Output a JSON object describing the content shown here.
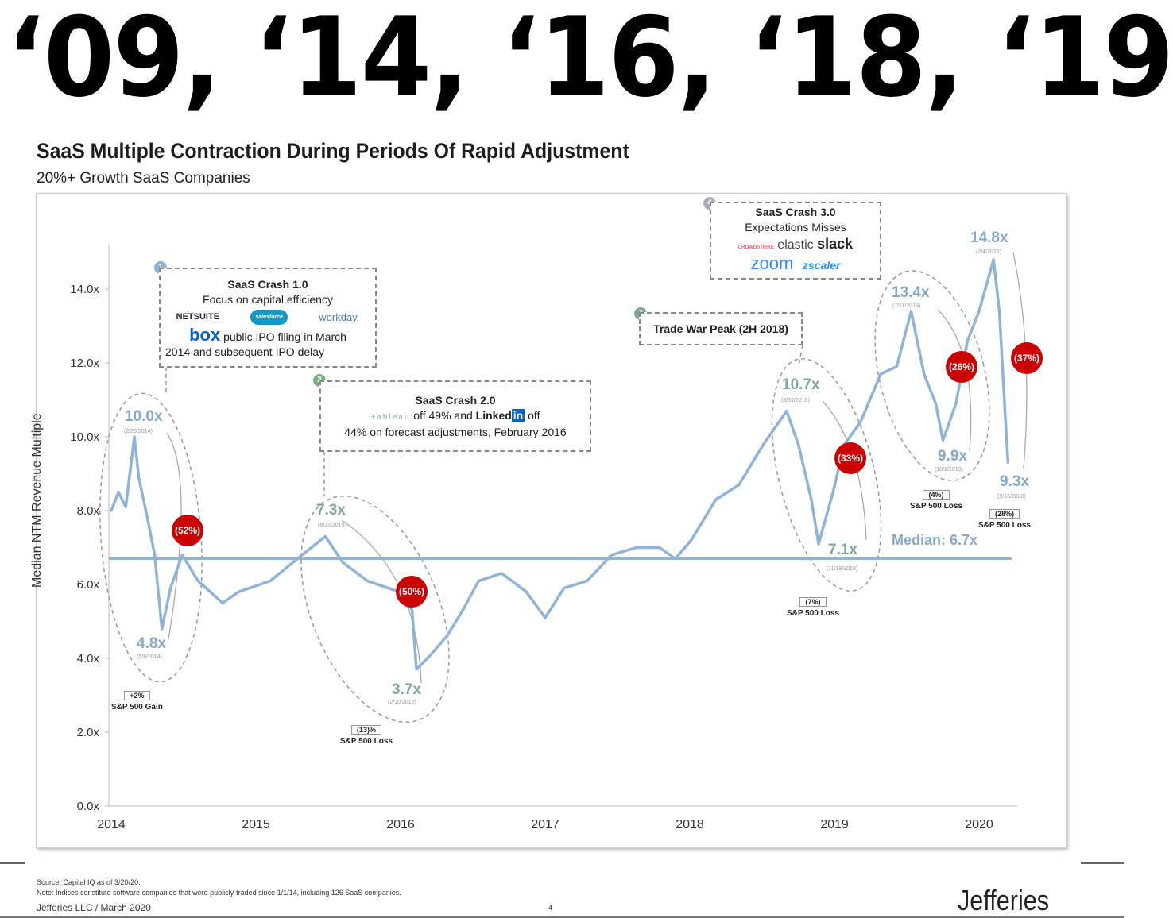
{
  "headline": "‘09, ‘14, ‘16, ‘18, ‘19",
  "chart_data": {
    "type": "line",
    "title": "SaaS Multiple Contraction During Periods Of Rapid Adjustment",
    "subtitle": "20%+ Growth SaaS Companies",
    "ylabel": "Median NTM Revenue Multiple",
    "xlabel": "",
    "ylim": [
      0,
      15
    ],
    "xlim": [
      2014,
      2020.3
    ],
    "yticks": [
      "0.0x",
      "2.0x",
      "4.0x",
      "6.0x",
      "8.0x",
      "10.0x",
      "12.0x",
      "14.0x"
    ],
    "ytick_values": [
      0,
      2,
      4,
      6,
      8,
      10,
      12,
      14
    ],
    "xticks": [
      "2014",
      "2015",
      "2016",
      "2017",
      "2018",
      "2019",
      "2020"
    ],
    "xtick_values": [
      2014,
      2015,
      2016,
      2017,
      2018,
      2019,
      2020
    ],
    "grid": false,
    "series": [
      {
        "name": "Median NTM Revenue Multiple",
        "color": "#8fb4d8",
        "x": [
          2014.0,
          2014.05,
          2014.1,
          2014.16,
          2014.19,
          2014.25,
          2014.3,
          2014.35,
          2014.41,
          2014.49,
          2014.6,
          2014.77,
          2014.88,
          2015.1,
          2015.32,
          2015.48,
          2015.6,
          2015.77,
          2015.99,
          2016.08,
          2016.11,
          2016.21,
          2016.32,
          2016.43,
          2016.54,
          2016.7,
          2016.87,
          2017.0,
          2017.13,
          2017.29,
          2017.46,
          2017.63,
          2017.79,
          2017.9,
          2018.01,
          2018.18,
          2018.34,
          2018.51,
          2018.67,
          2018.75,
          2018.84,
          2018.89,
          2018.99,
          2019.07,
          2019.18,
          2019.32,
          2019.43,
          2019.53,
          2019.62,
          2019.7,
          2019.75,
          2019.84,
          2019.92,
          2020.0,
          2020.1,
          2020.14,
          2020.18,
          2020.2
        ],
        "y": [
          8.0,
          8.5,
          8.1,
          10.0,
          8.9,
          7.8,
          6.8,
          4.8,
          5.9,
          6.8,
          6.1,
          5.5,
          5.8,
          6.1,
          6.8,
          7.3,
          6.6,
          6.1,
          5.8,
          5.3,
          3.7,
          4.1,
          4.6,
          5.3,
          6.1,
          6.3,
          5.8,
          5.1,
          5.9,
          6.1,
          6.8,
          7.0,
          7.0,
          6.7,
          7.2,
          8.3,
          8.7,
          9.8,
          10.7,
          9.8,
          8.3,
          7.1,
          8.5,
          9.8,
          10.4,
          11.7,
          11.9,
          13.4,
          11.7,
          10.9,
          9.9,
          10.9,
          12.6,
          13.4,
          14.8,
          13.4,
          10.6,
          9.3
        ]
      }
    ],
    "reference_line": {
      "label": "Median: 6.7x",
      "value": 6.7,
      "color": "#8fb4d8"
    },
    "annotations": {
      "p1": {
        "value": "10.0x",
        "date": "(2/26/2014)"
      },
      "t1": {
        "value": "4.8x",
        "date": "(5/8/2014)"
      },
      "d1": "(52%)",
      "sp1": {
        "change": "+2%",
        "label": "S&P 500 Gain"
      },
      "p2": {
        "value": "7.3x",
        "date": "(6/23/2015)"
      },
      "t2": {
        "value": "3.7x",
        "date": "(2/10/2016)"
      },
      "d2": "(50%)",
      "sp2": {
        "change": "(13)%",
        "label": "S&P 500 Loss"
      },
      "p3": {
        "value": "10.7x",
        "date": "(8/31/2018)"
      },
      "t3": {
        "value": "7.1x",
        "date": "(11/19/2018)"
      },
      "d3": "(33%)",
      "sp3": {
        "change": "(7%)",
        "label": "S&P 500 Loss"
      },
      "p4": {
        "value": "13.4x",
        "date": "(7/11/2019)"
      },
      "t4": {
        "value": "9.9x",
        "date": "(10/2/2019)"
      },
      "d4": "(26%)",
      "sp4": {
        "change": "(4%)",
        "label": "S&P 500 Loss"
      },
      "p5": {
        "value": "14.8x",
        "date": "(2/4/2020)"
      },
      "t5": {
        "value": "9.3x",
        "date": "(3/16/2020)"
      },
      "d5": "(37%)",
      "sp5": {
        "change": "(28%)",
        "label": "S&P 500 Loss"
      }
    },
    "callouts": {
      "c1": {
        "num": "1",
        "title": "SaaS Crash 1.0",
        "line1": "Focus on capital efficiency",
        "logos": [
          "NETSUITE",
          "salesforce",
          "workday."
        ],
        "logo_box": "box",
        "line2": "public IPO filing in March",
        "line3": "2014 and subsequent IPO delay"
      },
      "c2": {
        "num": "2",
        "title": "SaaS Crash 2.0",
        "logo_tableau": "+ableau",
        "text1": "off 49% and",
        "logo_linkedin": "Linked",
        "logo_in": "in",
        "text2": "off",
        "line2": "44% on forecast adjustments, February 2016"
      },
      "c3": {
        "num": "3",
        "title": "Trade War Peak (2H 2018)"
      },
      "c4": {
        "num": "4",
        "title": "SaaS Crash 3.0",
        "line1": "Expectations Misses",
        "logos": [
          "CROWDSTRIKE",
          "elastic",
          "slack",
          "zoom",
          "zscaler"
        ]
      }
    }
  },
  "footer": {
    "source": "Source: Capital IQ as of 3/20/20.",
    "note": "Note: Indices constitute software companies that were publicly-traded since 1/1/14, including 126 SaaS companies.",
    "firm": "Jefferies LLC  /  March 2020",
    "page": "4",
    "logo": "Jefferies"
  }
}
